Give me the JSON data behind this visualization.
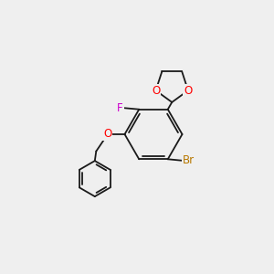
{
  "background_color": "#efefef",
  "bond_color": "#1a1a1a",
  "figsize": [
    3.0,
    3.0
  ],
  "dpi": 100,
  "atoms": {
    "F": {
      "color": "#cc00cc",
      "fontsize": 8.5
    },
    "O": {
      "color": "#ff0000",
      "fontsize": 8.5
    },
    "Br": {
      "color": "#b87800",
      "fontsize": 8.5
    }
  },
  "lw": 1.3
}
